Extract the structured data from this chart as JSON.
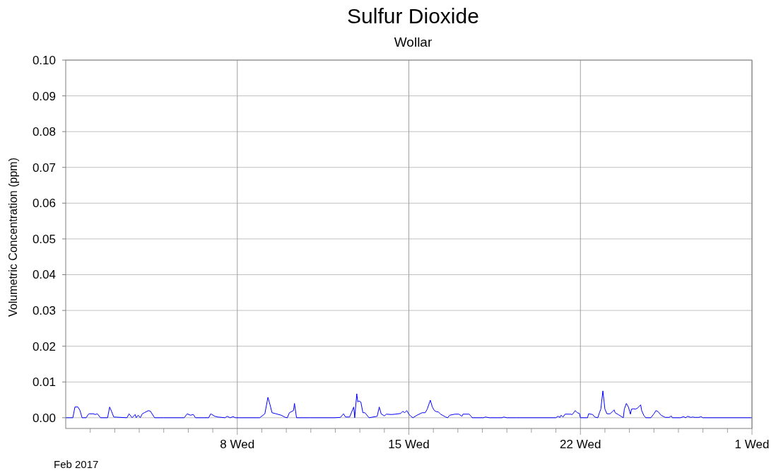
{
  "chart_data": {
    "type": "line",
    "title": "Sulfur Dioxide",
    "subtitle": "Wollar",
    "ylabel": "Volumetric Concentration (ppm)",
    "annotations": [
      "Feb 2017"
    ],
    "x": [
      "2017-02-01T00:00",
      "2017-02-01T07:00",
      "2017-02-01T09:00",
      "2017-02-01T12:00",
      "2017-02-01T14:00",
      "2017-02-01T16:00",
      "2017-02-01T20:00",
      "2017-02-01T22:00",
      "2017-02-01T23:00",
      "2017-02-02T03:00",
      "2017-02-02T05:00",
      "2017-02-02T07:00",
      "2017-02-02T10:00",
      "2017-02-02T17:00",
      "2017-02-02T19:00",
      "2017-02-02T21:00",
      "2017-02-02T23:00",
      "2017-02-03T12:00",
      "2017-02-03T14:00",
      "2017-02-03T17:00",
      "2017-02-03T20:00",
      "2017-02-03T21:00",
      "2017-02-03T23:00",
      "2017-02-04T01:00",
      "2017-02-04T03:00",
      "2017-02-04T05:00",
      "2017-02-04T09:00",
      "2017-02-04T11:00",
      "2017-02-04T15:00",
      "2017-02-05T00:00",
      "2017-02-05T20:00",
      "2017-02-05T23:00",
      "2017-02-06T02:00",
      "2017-02-06T05:00",
      "2017-02-06T07:00",
      "2017-02-06T20:00",
      "2017-02-06T22:00",
      "2017-02-07T02:00",
      "2017-02-07T05:00",
      "2017-02-07T12:00",
      "2017-02-07T14:00",
      "2017-02-07T17:00",
      "2017-02-07T20:00",
      "2017-02-07T22:00",
      "2017-02-08T02:00",
      "2017-02-08T22:00",
      "2017-02-09T03:00",
      "2017-02-09T06:00",
      "2017-02-09T08:00",
      "2017-02-09T10:00",
      "2017-02-09T14:00",
      "2017-02-09T19:00",
      "2017-02-09T23:00",
      "2017-02-10T01:00",
      "2017-02-10T03:00",
      "2017-02-10T07:00",
      "2017-02-10T08:00",
      "2017-02-10T10:00",
      "2017-02-10T23:00",
      "2017-02-11T23:00",
      "2017-02-12T05:00",
      "2017-02-12T08:00",
      "2017-02-12T10:00",
      "2017-02-12T14:00",
      "2017-02-12T18:00",
      "2017-02-12T19:00",
      "2017-02-12T21:00",
      "2017-02-12T22:00",
      "2017-02-12T23:00",
      "2017-02-13T01:00",
      "2017-02-13T03:00",
      "2017-02-13T05:00",
      "2017-02-13T09:00",
      "2017-02-13T17:00",
      "2017-02-13T19:00",
      "2017-02-13T21:00",
      "2017-02-13T22:00",
      "2017-02-14T00:00",
      "2017-02-14T02:00",
      "2017-02-14T07:00",
      "2017-02-14T11:00",
      "2017-02-14T16:00",
      "2017-02-14T18:00",
      "2017-02-14T20:00",
      "2017-02-14T22:00",
      "2017-02-15T00:00",
      "2017-02-15T02:00",
      "2017-02-15T04:00",
      "2017-02-15T08:00",
      "2017-02-15T13:00",
      "2017-02-15T16:00",
      "2017-02-15T18:00",
      "2017-02-15T21:00",
      "2017-02-15T23:00",
      "2017-02-16T01:00",
      "2017-02-16T03:00",
      "2017-02-16T05:00",
      "2017-02-16T07:00",
      "2017-02-16T09:00",
      "2017-02-16T12:00",
      "2017-02-16T14:00",
      "2017-02-16T16:00",
      "2017-02-16T21:00",
      "2017-02-17T01:00",
      "2017-02-17T04:00",
      "2017-02-17T05:00",
      "2017-02-17T11:00",
      "2017-02-17T13:00",
      "2017-02-17T14:00",
      "2017-02-18T01:00",
      "2017-02-18T03:00",
      "2017-02-18T07:00",
      "2017-02-18T19:00",
      "2017-02-18T21:00",
      "2017-02-19T00:00",
      "2017-02-19T09:00",
      "2017-02-21T00:00",
      "2017-02-21T02:00",
      "2017-02-21T04:00",
      "2017-02-21T05:00",
      "2017-02-21T07:00",
      "2017-02-21T09:00",
      "2017-02-21T14:00",
      "2017-02-21T16:00",
      "2017-02-21T19:00",
      "2017-02-21T21:00",
      "2017-02-21T23:00",
      "2017-02-22T00:00",
      "2017-02-22T07:00",
      "2017-02-22T08:00",
      "2017-02-22T12:00",
      "2017-02-22T14:00",
      "2017-02-22T17:00",
      "2017-02-22T19:00",
      "2017-02-22T20:00",
      "2017-02-22T22:00",
      "2017-02-23T00:00",
      "2017-02-23T02:00",
      "2017-02-23T05:00",
      "2017-02-23T07:00",
      "2017-02-23T09:00",
      "2017-02-23T10:00",
      "2017-02-23T13:00",
      "2017-02-23T18:00",
      "2017-02-23T19:00",
      "2017-02-23T21:00",
      "2017-02-23T23:00",
      "2017-02-24T01:00",
      "2017-02-24T02:00",
      "2017-02-24T04:00",
      "2017-02-24T06:00",
      "2017-02-24T08:00",
      "2017-02-24T11:00",
      "2017-02-24T12:00",
      "2017-02-24T14:00",
      "2017-02-24T16:00",
      "2017-02-24T21:00",
      "2017-02-25T00:00",
      "2017-02-25T02:00",
      "2017-02-25T04:00",
      "2017-02-25T07:00",
      "2017-02-25T11:00",
      "2017-02-25T15:00",
      "2017-02-25T17:00",
      "2017-02-25T18:00",
      "2017-02-26T02:00",
      "2017-02-26T05:00",
      "2017-02-26T07:00",
      "2017-02-26T09:00",
      "2017-02-26T12:00",
      "2017-02-26T14:00",
      "2017-02-26T16:00",
      "2017-02-26T20:00",
      "2017-02-26T22:00",
      "2017-02-27T00:00",
      "2017-02-28T23:00",
      "2017-03-01T00:00"
    ],
    "series": [
      {
        "color": "#0000ff",
        "values": [
          0,
          0,
          0.003,
          0.003,
          0.002,
          0,
          0,
          0.0009,
          0.0011,
          0.0011,
          0.0009,
          0.0011,
          0,
          0,
          0.003,
          0.0017,
          0.0002,
          0,
          0.0011,
          0,
          0.0009,
          0,
          0.0007,
          0,
          0.0011,
          0.0014,
          0.002,
          0.0018,
          0,
          0,
          0,
          0.0011,
          0.0007,
          0.0009,
          0,
          0,
          0.0011,
          0.0004,
          0.0002,
          0,
          0.0004,
          0,
          0.0003,
          0,
          0,
          0,
          0.0011,
          0.0057,
          0.0037,
          0.0014,
          0.0011,
          0.0007,
          0.0001,
          0,
          0.0014,
          0.002,
          0.004,
          0,
          0,
          0,
          0.0001,
          0.0011,
          0.0002,
          0.0002,
          0.003,
          0,
          0.0067,
          0.0044,
          0.0047,
          0.0044,
          0.0014,
          0.0014,
          0,
          0.0004,
          0.003,
          0.001,
          0.0009,
          0.0005,
          0.001,
          0.0009,
          0.001,
          0.0012,
          0.0018,
          0.0014,
          0.002,
          0.001,
          0.0004,
          0,
          0.0007,
          0.0014,
          0.0014,
          0.0024,
          0.0049,
          0.003,
          0.002,
          0.0017,
          0.0016,
          0.001,
          0.0007,
          0.0002,
          0,
          0.0007,
          0.001,
          0.001,
          0.0004,
          0.001,
          0.001,
          0.0004,
          0,
          0,
          0.0002,
          0,
          0,
          0.0002,
          0,
          0,
          0,
          0.0004,
          0.0001,
          0.0007,
          0.0002,
          0.001,
          0.001,
          0.0009,
          0.002,
          0.0014,
          0.0012,
          0,
          0,
          0.0011,
          0.0009,
          0.0002,
          0,
          0.0017,
          0.0024,
          0.0075,
          0.0024,
          0.0011,
          0.0011,
          0.0016,
          0.0022,
          0.0014,
          0.0009,
          0,
          0.0024,
          0.004,
          0.003,
          0.001,
          0.0024,
          0.0025,
          0.0024,
          0.0027,
          0.0036,
          0.002,
          0.0007,
          0,
          0,
          0.0011,
          0.002,
          0.0017,
          0.0007,
          0.0001,
          0.0001,
          0.0005,
          0,
          0,
          0.0003,
          0,
          0.0004,
          0.0001,
          0.0002,
          0.0001,
          0.0001,
          0.0003,
          0,
          0,
          0
        ]
      }
    ],
    "xlim": [
      "2017-02-01",
      "2017-03-01"
    ],
    "xticks": [
      {
        "value": "2017-02-02",
        "label": null
      },
      {
        "value": "2017-02-03",
        "label": null
      },
      {
        "value": "2017-02-04",
        "label": null
      },
      {
        "value": "2017-02-05",
        "label": null
      },
      {
        "value": "2017-02-06",
        "label": null
      },
      {
        "value": "2017-02-07",
        "label": null
      },
      {
        "value": "2017-02-08",
        "label": "8 Wed"
      },
      {
        "value": "2017-02-09",
        "label": null
      },
      {
        "value": "2017-02-10",
        "label": null
      },
      {
        "value": "2017-02-11",
        "label": null
      },
      {
        "value": "2017-02-12",
        "label": null
      },
      {
        "value": "2017-02-13",
        "label": null
      },
      {
        "value": "2017-02-14",
        "label": null
      },
      {
        "value": "2017-02-15",
        "label": "15 Wed"
      },
      {
        "value": "2017-02-16",
        "label": null
      },
      {
        "value": "2017-02-17",
        "label": null
      },
      {
        "value": "2017-02-18",
        "label": null
      },
      {
        "value": "2017-02-19",
        "label": null
      },
      {
        "value": "2017-02-20",
        "label": null
      },
      {
        "value": "2017-02-21",
        "label": null
      },
      {
        "value": "2017-02-22",
        "label": "22 Wed"
      },
      {
        "value": "2017-02-23",
        "label": null
      },
      {
        "value": "2017-02-24",
        "label": null
      },
      {
        "value": "2017-02-25",
        "label": null
      },
      {
        "value": "2017-02-26",
        "label": null
      },
      {
        "value": "2017-02-27",
        "label": null
      },
      {
        "value": "2017-02-28",
        "label": null
      },
      {
        "value": "2017-03-01",
        "label": "1 Wed"
      }
    ],
    "ylim": [
      -0.003,
      0.1
    ],
    "yticks": [
      {
        "value": 0,
        "label": "0.00"
      },
      {
        "value": 0.01,
        "label": "0.01"
      },
      {
        "value": 0.02,
        "label": "0.02"
      },
      {
        "value": 0.03,
        "label": "0.03"
      },
      {
        "value": 0.04,
        "label": "0.04"
      },
      {
        "value": 0.05,
        "label": "0.05"
      },
      {
        "value": 0.06,
        "label": "0.06"
      },
      {
        "value": 0.07,
        "label": "0.07"
      },
      {
        "value": 0.08,
        "label": "0.08"
      },
      {
        "value": 0.09,
        "label": "0.09"
      },
      {
        "value": 0.1,
        "label": "0.10"
      }
    ],
    "grid": true,
    "marker": "none",
    "line_style": "solid"
  }
}
